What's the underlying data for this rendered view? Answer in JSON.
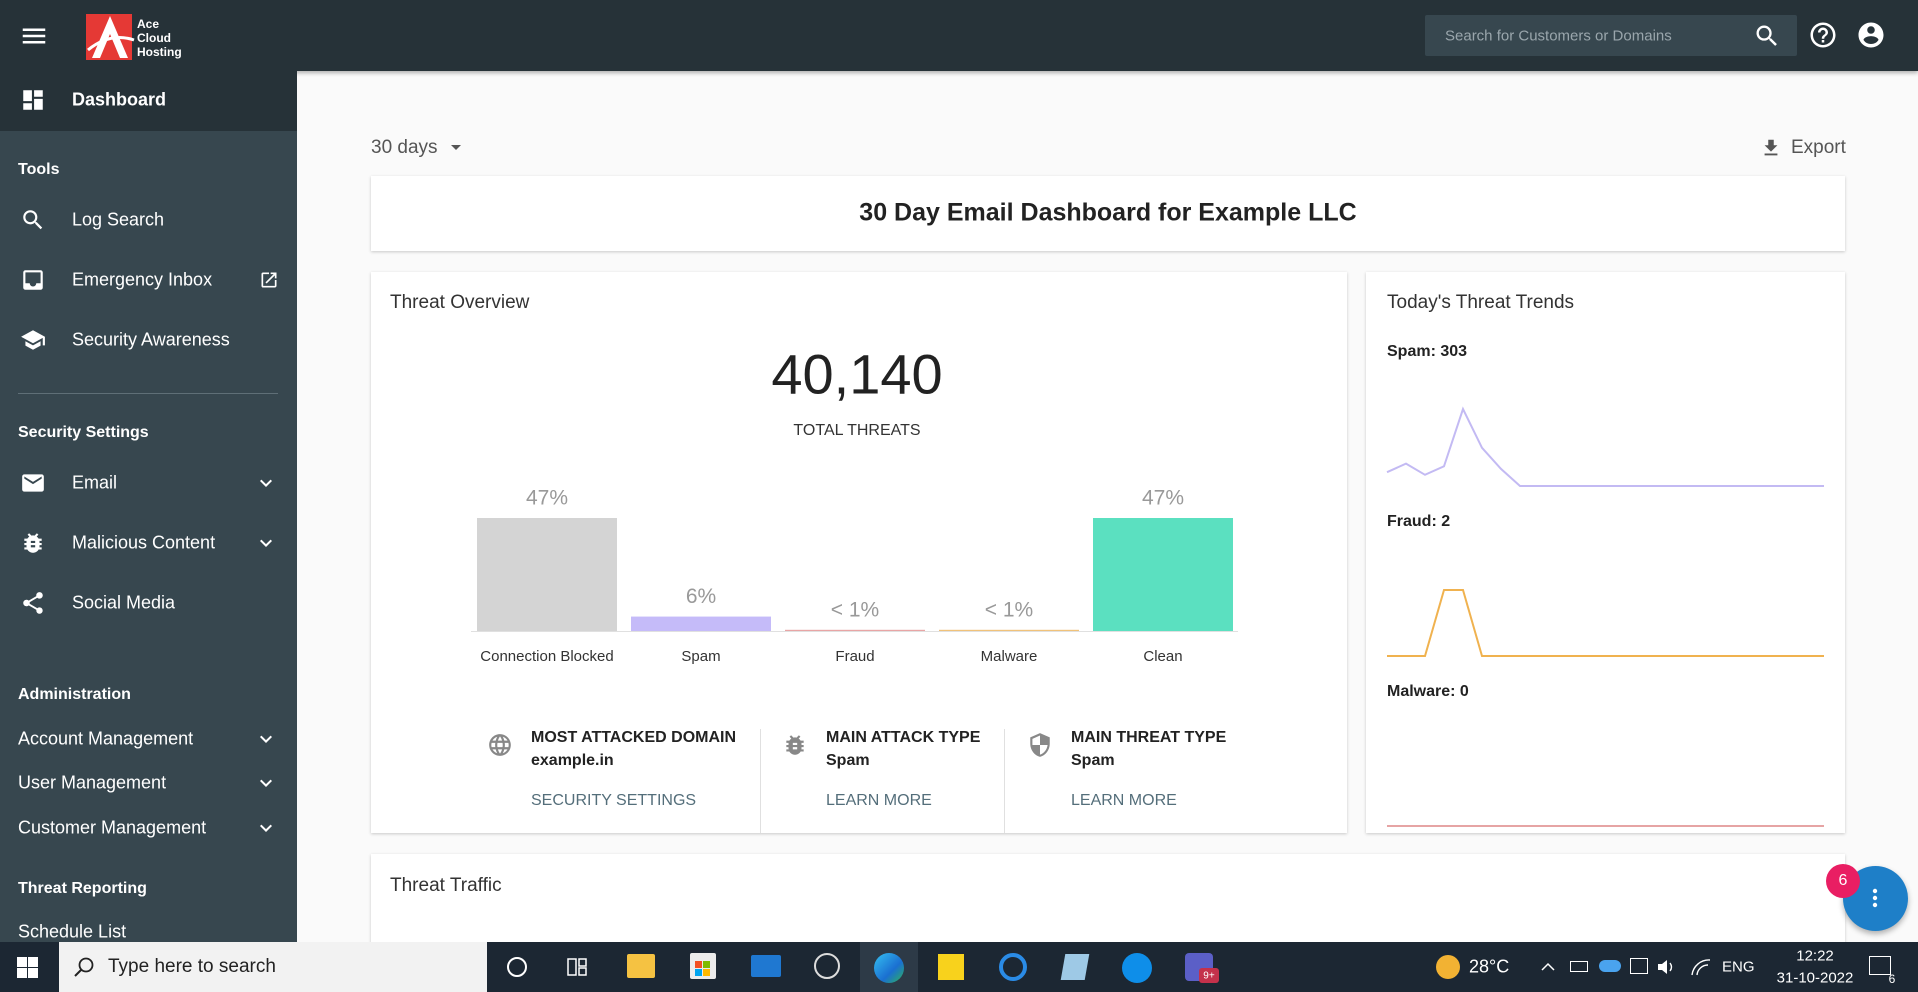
{
  "topbar": {
    "logo": [
      "Ace",
      "Cloud",
      "Hosting"
    ],
    "search_placeholder": "Search for Customers or Domains"
  },
  "sidebar": {
    "dashboard": "Dashboard",
    "sections": [
      {
        "title": "Tools",
        "items": [
          "Log Search",
          "Emergency Inbox",
          "Security Awareness"
        ]
      },
      {
        "title": "Security Settings",
        "items": [
          "Email",
          "Malicious Content",
          "Social Media"
        ]
      },
      {
        "title": "Administration",
        "items": [
          "Account Management",
          "User Management",
          "Customer Management"
        ]
      },
      {
        "title": "Threat Reporting",
        "items": [
          "Schedule List"
        ]
      }
    ]
  },
  "toolbar": {
    "range": "30 days",
    "export": "Export"
  },
  "header": {
    "title": "30 Day Email Dashboard for Example LLC"
  },
  "threat_overview": {
    "title": "Threat Overview",
    "total": "40,140",
    "total_label": "TOTAL THREATS",
    "chart": {
      "type": "bar",
      "categories": [
        "Connection Blocked",
        "Spam",
        "Fraud",
        "Malware",
        "Clean"
      ],
      "values": [
        47,
        6,
        0.5,
        0.5,
        47
      ],
      "value_labels": [
        "47%",
        "6%",
        "< 1%",
        "< 1%",
        "47%"
      ],
      "colors": [
        "#d4d4d4",
        "#c5bbf9",
        "#e8a5a5",
        "#f0c27a",
        "#5be0c0"
      ]
    },
    "stats": [
      {
        "label": "MOST ATTACKED DOMAIN",
        "value": "example.in",
        "link": "SECURITY SETTINGS"
      },
      {
        "label": "MAIN ATTACK TYPE",
        "value": "Spam",
        "link": "LEARN MORE"
      },
      {
        "label": "MAIN THREAT TYPE",
        "value": "Spam",
        "link": "LEARN MORE"
      }
    ]
  },
  "trends": {
    "title": "Today's Threat Trends",
    "type": "line",
    "series": [
      {
        "name": "Spam: 303",
        "color": "#c3baf3",
        "values": [
          21,
          34,
          17,
          30,
          117,
          58,
          26,
          0,
          0,
          0,
          0,
          0,
          0,
          0,
          0,
          0,
          0,
          0,
          0,
          0,
          0,
          0,
          0,
          0
        ]
      },
      {
        "name": "Fraud: 2",
        "color": "#f0b24f",
        "values": [
          0,
          0,
          0,
          1,
          1,
          0,
          0,
          0,
          0,
          0,
          0,
          0,
          0,
          0,
          0,
          0,
          0,
          0,
          0,
          0,
          0,
          0,
          0,
          0
        ]
      },
      {
        "name": "Malware: 0",
        "color": "#e6a4a4",
        "values": [
          0,
          0,
          0,
          0,
          0,
          0,
          0,
          0,
          0,
          0,
          0,
          0,
          0,
          0,
          0,
          0,
          0,
          0,
          0,
          0,
          0,
          0,
          0,
          0
        ]
      }
    ]
  },
  "threat_traffic": {
    "title": "Threat Traffic"
  },
  "fab": {
    "badge": 6
  },
  "taskbar": {
    "search": "Type here to search",
    "teams_badge": "9+",
    "weather": "28°C",
    "language": "ENG",
    "time": "12:22",
    "date": "31-10-2022",
    "notifications": 6
  }
}
